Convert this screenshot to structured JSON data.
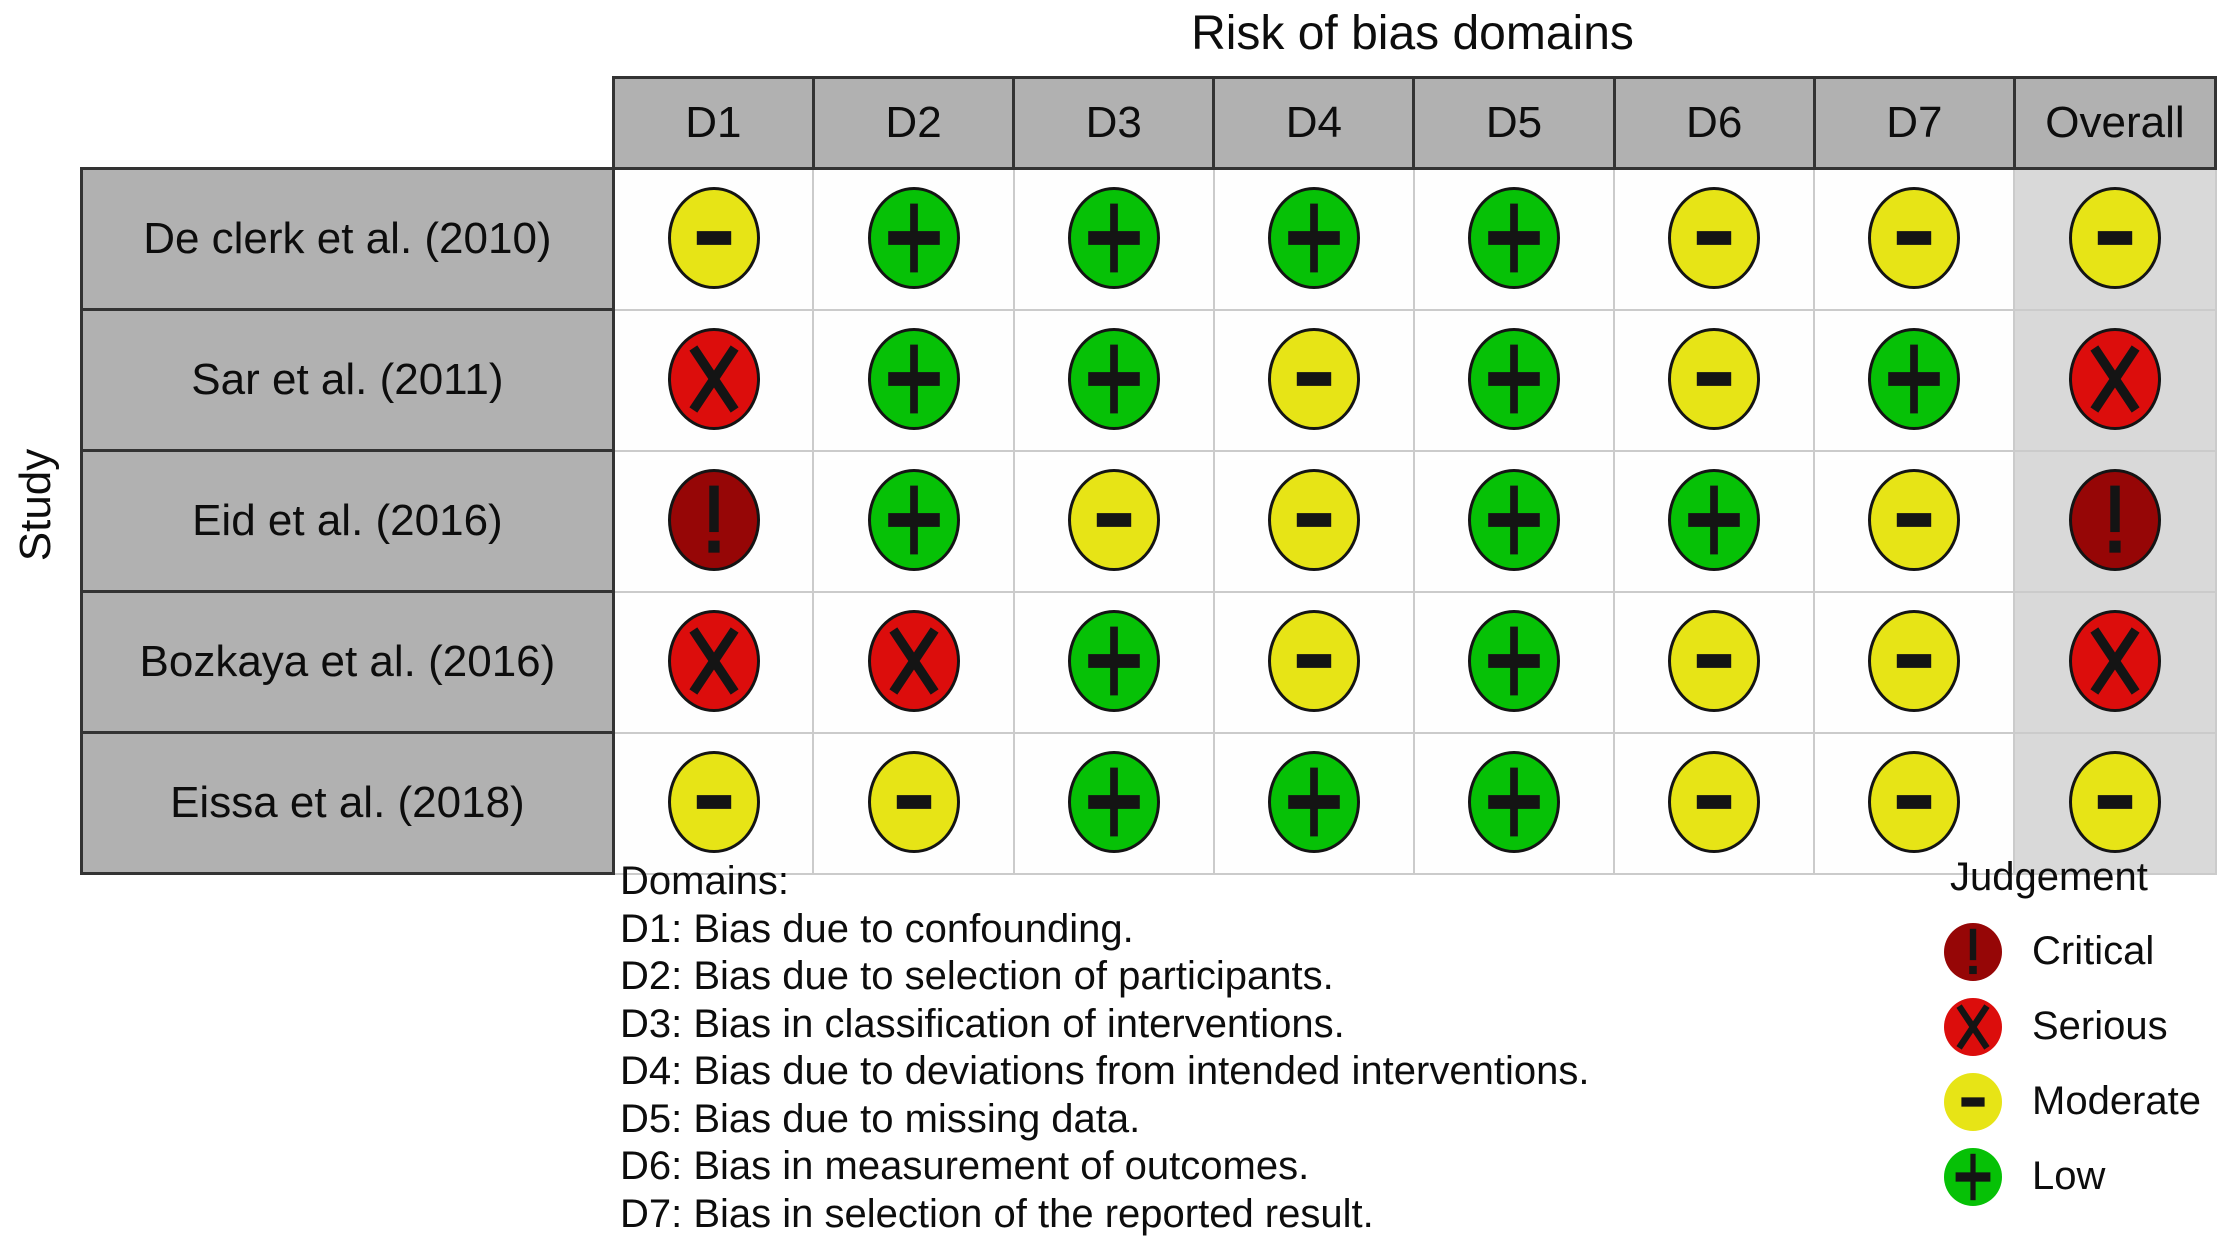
{
  "title": "Risk of bias domains",
  "y_axis_label": "Study",
  "columns": [
    "D1",
    "D2",
    "D3",
    "D4",
    "D5",
    "D6",
    "D7",
    "Overall"
  ],
  "studies": [
    {
      "label": "De clerk et al. (2010)",
      "judgements": [
        "moderate",
        "low",
        "low",
        "low",
        "low",
        "moderate",
        "moderate",
        "moderate"
      ]
    },
    {
      "label": "Sar et al. (2011)",
      "judgements": [
        "serious",
        "low",
        "low",
        "moderate",
        "low",
        "moderate",
        "low",
        "serious"
      ]
    },
    {
      "label": "Eid et al. (2016)",
      "judgements": [
        "critical",
        "low",
        "moderate",
        "moderate",
        "low",
        "low",
        "moderate",
        "critical"
      ]
    },
    {
      "label": "Bozkaya et al. (2016)",
      "judgements": [
        "serious",
        "serious",
        "low",
        "moderate",
        "low",
        "moderate",
        "moderate",
        "serious"
      ]
    },
    {
      "label": "Eissa et al. (2018)",
      "judgements": [
        "moderate",
        "moderate",
        "low",
        "low",
        "low",
        "moderate",
        "moderate",
        "moderate"
      ]
    }
  ],
  "judgement_styles": {
    "low": {
      "color": "#06c106",
      "symbol": "plus",
      "label": "Low"
    },
    "moderate": {
      "color": "#e7e416",
      "symbol": "minus",
      "label": "Moderate"
    },
    "serious": {
      "color": "#dc0d0c",
      "symbol": "x",
      "label": "Serious"
    },
    "critical": {
      "color": "#960606",
      "symbol": "exclamation",
      "label": "Critical"
    }
  },
  "footnotes": {
    "heading": "Domains:",
    "lines": [
      "D1: Bias due to confounding.",
      "D2: Bias due to selection of participants.",
      "D3: Bias in classification of interventions.",
      "D4: Bias due to deviations from intended interventions.",
      "D5: Bias due to missing data.",
      "D6: Bias in measurement of outcomes.",
      "D7: Bias in selection of the reported result."
    ]
  },
  "legend": {
    "title": "Judgement",
    "items": [
      {
        "label": "Critical",
        "judgement": "critical"
      },
      {
        "label": "Serious",
        "judgement": "serious"
      },
      {
        "label": "Moderate",
        "judgement": "moderate"
      },
      {
        "label": "Low",
        "judgement": "low"
      }
    ]
  },
  "chart_data": {
    "type": "heatmap",
    "title": "Risk of bias domains",
    "x_categories": [
      "D1",
      "D2",
      "D3",
      "D4",
      "D5",
      "D6",
      "D7",
      "Overall"
    ],
    "y_categories": [
      "De clerk et al. (2010)",
      "Sar et al. (2011)",
      "Eid et al. (2016)",
      "Bozkaya et al. (2016)",
      "Eissa et al. (2018)"
    ],
    "ylabel": "Study",
    "values": [
      [
        "Moderate",
        "Low",
        "Low",
        "Low",
        "Low",
        "Moderate",
        "Moderate",
        "Moderate"
      ],
      [
        "Serious",
        "Low",
        "Low",
        "Moderate",
        "Low",
        "Moderate",
        "Low",
        "Serious"
      ],
      [
        "Critical",
        "Low",
        "Moderate",
        "Moderate",
        "Low",
        "Low",
        "Moderate",
        "Critical"
      ],
      [
        "Serious",
        "Serious",
        "Low",
        "Moderate",
        "Low",
        "Moderate",
        "Moderate",
        "Serious"
      ],
      [
        "Moderate",
        "Moderate",
        "Low",
        "Low",
        "Low",
        "Moderate",
        "Moderate",
        "Moderate"
      ]
    ],
    "value_scale": {
      "Low": "green +",
      "Moderate": "yellow -",
      "Serious": "red X",
      "Critical": "dark red !"
    },
    "legend_title": "Judgement",
    "legend_entries": [
      "Critical",
      "Serious",
      "Moderate",
      "Low"
    ],
    "legend_position": "bottom-right",
    "grid": "table"
  }
}
